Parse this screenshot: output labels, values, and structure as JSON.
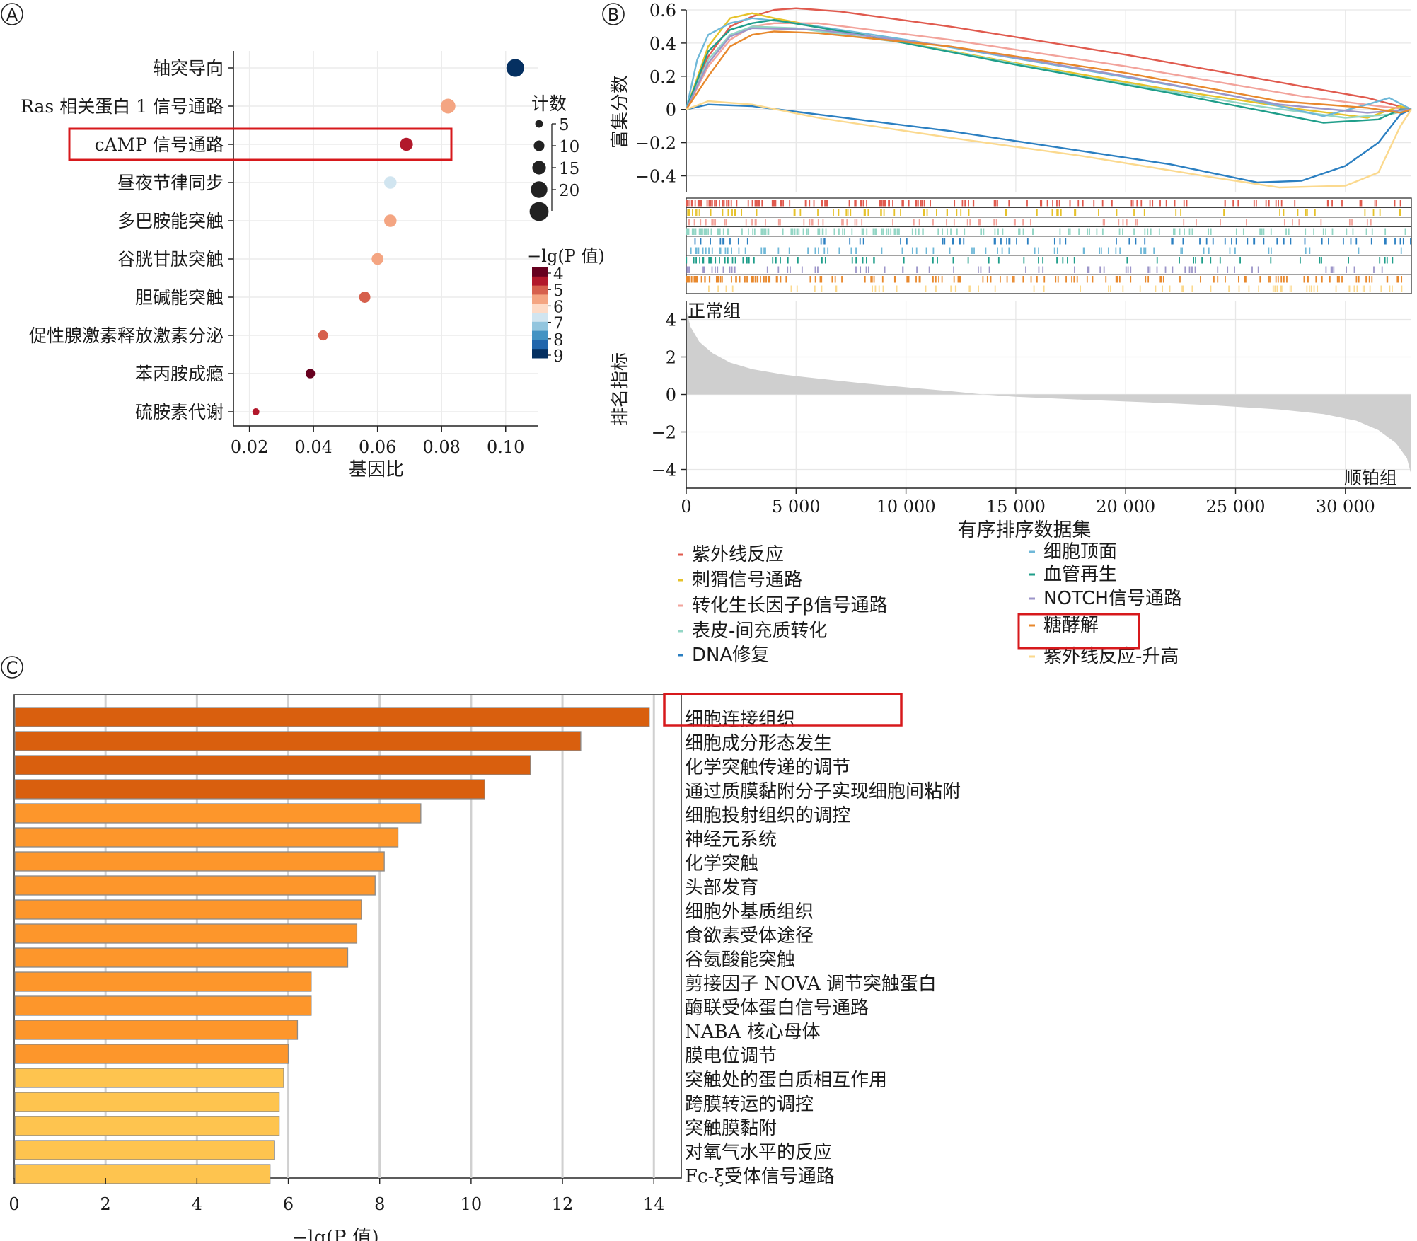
{
  "panels": {
    "a_label": "A",
    "b_label": "B",
    "c_label": "C"
  },
  "chart_data": [
    {
      "type": "scatter",
      "panel": "A",
      "xlabel": "基因比",
      "xlim": [
        0.015,
        0.11
      ],
      "xticks": [
        0.02,
        0.04,
        0.06,
        0.08,
        0.1
      ],
      "xtick_labels": [
        "0.02",
        "0.04",
        "0.06",
        "0.08",
        "0.10"
      ],
      "categories": [
        "轴突导向",
        "Ras 相关蛋白 1 信号通路",
        "cAMP 信号通路",
        "昼夜节律同步",
        "多巴胺能突触",
        "谷胱甘肽突触",
        "胆碱能突触",
        "促性腺激素释放激素分泌",
        "苯丙胺成瘾",
        "硫胺素代谢"
      ],
      "gene_ratio": [
        0.103,
        0.082,
        0.069,
        0.064,
        0.064,
        0.06,
        0.056,
        0.043,
        0.039,
        0.022
      ],
      "count": [
        22,
        17,
        14,
        13,
        13,
        12,
        11,
        9,
        8,
        4
      ],
      "neg_log_p": [
        8.8,
        5.4,
        4.7,
        7.0,
        5.6,
        5.6,
        4.9,
        5.0,
        4.2,
        4.5
      ],
      "size_legend_title": "计数",
      "size_legend": [
        5,
        10,
        15,
        20
      ],
      "size_legend_labels": [
        "5",
        "10",
        "15",
        "20"
      ],
      "color_legend_title": "−lg(P 值)",
      "color_legend_labels": [
        "4",
        "5",
        "6",
        "7",
        "8",
        "9"
      ],
      "colors": [
        "#67001f",
        "#b2182b",
        "#d6604d",
        "#f4a582",
        "#fddbc7",
        "#d1e5f0",
        "#92c5de",
        "#4393c3",
        "#2166ac",
        "#053061"
      ],
      "highlight": "cAMP 信号通路"
    },
    {
      "type": "line",
      "panel": "B",
      "ylabel": "富集分数",
      "ylim": [
        -0.5,
        0.6
      ],
      "yticks": [
        0.6,
        0.4,
        0.2,
        0,
        -0.2,
        -0.4
      ],
      "ytick_labels": [
        "0.6",
        "0.4",
        "0.2",
        "0",
        "−0.2",
        "−0.4"
      ],
      "xlim": [
        0,
        33000
      ],
      "series": [
        {
          "name": "紫外线反应",
          "color": "#e05a4e",
          "points": [
            [
              0,
              0
            ],
            [
              1000,
              0.32
            ],
            [
              2000,
              0.5
            ],
            [
              3000,
              0.56
            ],
            [
              4000,
              0.6
            ],
            [
              5000,
              0.61
            ],
            [
              7000,
              0.59
            ],
            [
              12000,
              0.5
            ],
            [
              20000,
              0.33
            ],
            [
              28000,
              0.14
            ],
            [
              31000,
              0.07
            ],
            [
              33000,
              0
            ]
          ]
        },
        {
          "name": "刺猬信号通路",
          "color": "#e6c22a",
          "points": [
            [
              0,
              0
            ],
            [
              1000,
              0.38
            ],
            [
              2000,
              0.55
            ],
            [
              3000,
              0.58
            ],
            [
              4000,
              0.55
            ],
            [
              8000,
              0.45
            ],
            [
              15000,
              0.28
            ],
            [
              22000,
              0.12
            ],
            [
              28000,
              0.0
            ],
            [
              31000,
              -0.05
            ],
            [
              32500,
              0.02
            ],
            [
              33000,
              0
            ]
          ]
        },
        {
          "name": "转化生长因子β信号通路",
          "color": "#f2a39b",
          "points": [
            [
              0,
              0
            ],
            [
              1000,
              0.26
            ],
            [
              2000,
              0.42
            ],
            [
              3000,
              0.5
            ],
            [
              4000,
              0.52
            ],
            [
              6000,
              0.52
            ],
            [
              12000,
              0.42
            ],
            [
              20000,
              0.26
            ],
            [
              28000,
              0.08
            ],
            [
              31500,
              0.02
            ],
            [
              33000,
              0
            ]
          ]
        },
        {
          "name": "表皮-间充质转化",
          "color": "#93d6c5",
          "points": [
            [
              0,
              0
            ],
            [
              1000,
              0.3
            ],
            [
              2000,
              0.45
            ],
            [
              3000,
              0.5
            ],
            [
              5000,
              0.49
            ],
            [
              10000,
              0.4
            ],
            [
              18000,
              0.2
            ],
            [
              26000,
              0.02
            ],
            [
              30000,
              -0.05
            ],
            [
              32000,
              -0.03
            ],
            [
              33000,
              0
            ]
          ]
        },
        {
          "name": "DNA修复",
          "color": "#2b7fc1",
          "points": [
            [
              0,
              0
            ],
            [
              1000,
              0.03
            ],
            [
              3000,
              0.02
            ],
            [
              6000,
              -0.03
            ],
            [
              12000,
              -0.13
            ],
            [
              18000,
              -0.25
            ],
            [
              22000,
              -0.33
            ],
            [
              26000,
              -0.44
            ],
            [
              28000,
              -0.43
            ],
            [
              30000,
              -0.34
            ],
            [
              31500,
              -0.2
            ],
            [
              32500,
              -0.03
            ],
            [
              33000,
              0
            ]
          ]
        },
        {
          "name": "细胞顶面",
          "color": "#6fb8d8",
          "points": [
            [
              0,
              0
            ],
            [
              500,
              0.3
            ],
            [
              1000,
              0.45
            ],
            [
              2000,
              0.52
            ],
            [
              3000,
              0.55
            ],
            [
              5000,
              0.52
            ],
            [
              10000,
              0.42
            ],
            [
              18000,
              0.24
            ],
            [
              25000,
              0.08
            ],
            [
              29000,
              -0.04
            ],
            [
              31000,
              0.03
            ],
            [
              32000,
              0.07
            ],
            [
              33000,
              0
            ]
          ]
        },
        {
          "name": "血管再生",
          "color": "#1f9e8a",
          "points": [
            [
              0,
              0
            ],
            [
              1000,
              0.35
            ],
            [
              2000,
              0.48
            ],
            [
              3000,
              0.52
            ],
            [
              4000,
              0.54
            ],
            [
              8000,
              0.45
            ],
            [
              15000,
              0.27
            ],
            [
              22000,
              0.1
            ],
            [
              29000,
              -0.08
            ],
            [
              31500,
              -0.06
            ],
            [
              32500,
              0.0
            ],
            [
              33000,
              0
            ]
          ]
        },
        {
          "name": "NOTCH信号通路",
          "color": "#9c95c9",
          "points": [
            [
              0,
              0
            ],
            [
              1000,
              0.28
            ],
            [
              2000,
              0.44
            ],
            [
              3000,
              0.49
            ],
            [
              6000,
              0.48
            ],
            [
              12000,
              0.38
            ],
            [
              20000,
              0.2
            ],
            [
              27000,
              0.03
            ],
            [
              31000,
              -0.02
            ],
            [
              33000,
              0
            ]
          ]
        },
        {
          "name": "糖酵解",
          "color": "#e8882c",
          "points": [
            [
              0,
              0
            ],
            [
              1000,
              0.2
            ],
            [
              2000,
              0.38
            ],
            [
              3000,
              0.45
            ],
            [
              4000,
              0.47
            ],
            [
              6000,
              0.46
            ],
            [
              12000,
              0.38
            ],
            [
              20000,
              0.22
            ],
            [
              27000,
              0.05
            ],
            [
              31000,
              0.01
            ],
            [
              32500,
              -0.02
            ],
            [
              33000,
              0
            ]
          ]
        },
        {
          "name": "紫外线反应-升高",
          "color": "#fbd98e",
          "points": [
            [
              0,
              0
            ],
            [
              1000,
              0.05
            ],
            [
              3000,
              0.03
            ],
            [
              6000,
              -0.05
            ],
            [
              12000,
              -0.17
            ],
            [
              18000,
              -0.28
            ],
            [
              24000,
              -0.41
            ],
            [
              27000,
              -0.47
            ],
            [
              30000,
              -0.46
            ],
            [
              31500,
              -0.38
            ],
            [
              32500,
              -0.1
            ],
            [
              33000,
              0
            ]
          ]
        }
      ]
    },
    {
      "type": "area",
      "panel": "B",
      "ylabel": "排名指标",
      "xlabel": "有序排序数据集",
      "ylim": [
        -5,
        5
      ],
      "yticks": [
        4,
        2,
        0,
        -2,
        -4
      ],
      "ytick_labels": [
        "4",
        "2",
        "0",
        "−2",
        "−4"
      ],
      "xlim": [
        0,
        33000
      ],
      "xticks": [
        0,
        5000,
        10000,
        15000,
        20000,
        25000,
        30000
      ],
      "xtick_labels": [
        "0",
        "5 000",
        "10 000",
        "15 000",
        "20 000",
        "25 000",
        "30 000"
      ],
      "points": [
        [
          0,
          4.5
        ],
        [
          200,
          3.6
        ],
        [
          600,
          2.8
        ],
        [
          1200,
          2.2
        ],
        [
          2000,
          1.7
        ],
        [
          3000,
          1.35
        ],
        [
          4500,
          1.05
        ],
        [
          6000,
          0.85
        ],
        [
          8000,
          0.6
        ],
        [
          10000,
          0.38
        ],
        [
          12000,
          0.18
        ],
        [
          13500,
          0.0
        ],
        [
          15000,
          -0.12
        ],
        [
          18000,
          -0.28
        ],
        [
          21000,
          -0.42
        ],
        [
          24000,
          -0.58
        ],
        [
          27000,
          -0.8
        ],
        [
          29000,
          -1.05
        ],
        [
          30500,
          -1.4
        ],
        [
          31500,
          -1.9
        ],
        [
          32300,
          -2.6
        ],
        [
          32800,
          -3.4
        ],
        [
          33000,
          -4.3
        ]
      ],
      "left_annotation": "正常组",
      "right_annotation": "顺铂组"
    },
    {
      "type": "bar",
      "panel": "C",
      "orientation": "horizontal",
      "xlabel": "−lg(P 值)",
      "xlim": [
        0,
        14.6
      ],
      "xticks": [
        0,
        2,
        4,
        6,
        8,
        10,
        12,
        14
      ],
      "xtick_labels": [
        "0",
        "2",
        "4",
        "6",
        "8",
        "10",
        "12",
        "14"
      ],
      "categories": [
        "细胞连接组织",
        "细胞成分形态发生",
        "化学突触传递的调节",
        "通过质膜黏附分子实现细胞间粘附",
        "细胞投射组织的调控",
        "神经元系统",
        "化学突触",
        "头部发育",
        "细胞外基质组织",
        "食欲素受体途径",
        "谷氨酸能突触",
        "剪接因子 NOVA 调节突触蛋白",
        "酶联受体蛋白信号通路",
        "NABA 核心母体",
        "膜电位调节",
        "突触处的蛋白质相互作用",
        "跨膜转运的调控",
        "突触膜黏附",
        "对氧气水平的反应",
        "Fc-ξ受体信号通路"
      ],
      "values": [
        13.9,
        12.4,
        11.3,
        10.3,
        8.9,
        8.4,
        8.1,
        7.9,
        7.6,
        7.5,
        7.3,
        6.5,
        6.5,
        6.2,
        6.0,
        5.9,
        5.8,
        5.8,
        5.7,
        5.6
      ],
      "colors": [
        "#d95f0e",
        "#d95f0e",
        "#d95f0e",
        "#d95f0e",
        "#fd962b",
        "#fd962b",
        "#fd962b",
        "#fd962b",
        "#fd962b",
        "#fd962b",
        "#fd962b",
        "#fd962b",
        "#fd962b",
        "#fd962b",
        "#fd962b",
        "#fec44f",
        "#fec44f",
        "#fec44f",
        "#fec44f",
        "#fec44f"
      ],
      "highlight": "细胞连接组织"
    }
  ],
  "gsea_legend_left": [
    "紫外线反应",
    "刺猬信号通路",
    "转化生长因子β信号通路",
    "表皮-间充质转化",
    "DNA修复"
  ],
  "gsea_legend_right": [
    "细胞顶面",
    "血管再生",
    "NOTCH信号通路",
    "糖酵解",
    "紫外线反应-升高"
  ],
  "highlight_color": "#d7191c"
}
